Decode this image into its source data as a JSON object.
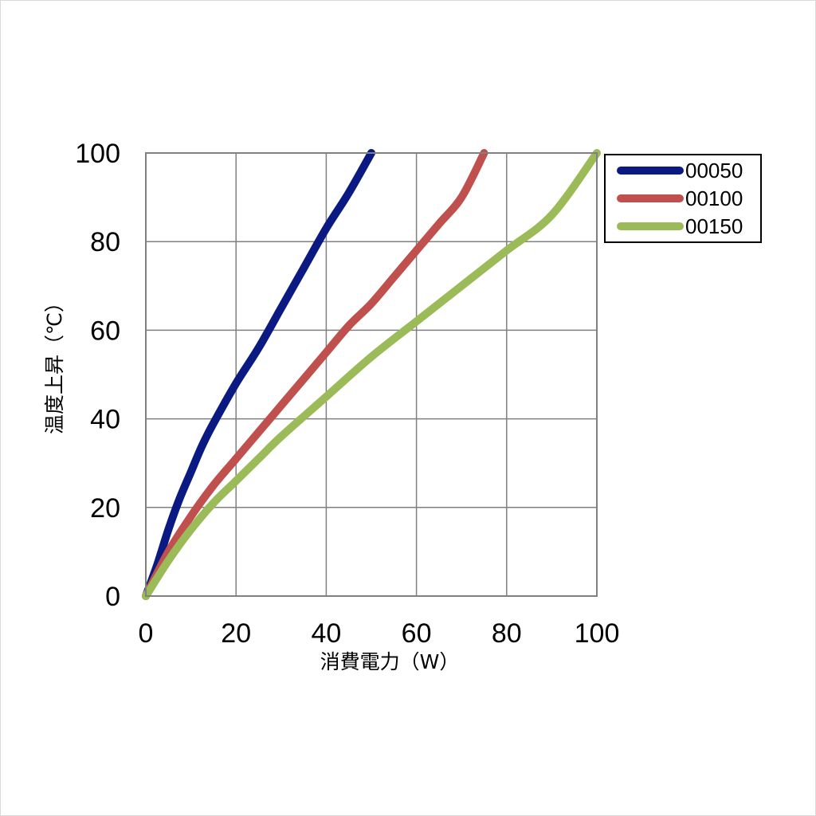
{
  "chart_data": {
    "type": "line",
    "xlabel": "消費電力（W）",
    "ylabel": "温度上昇（℃）",
    "xlim": [
      0,
      100
    ],
    "ylim": [
      0,
      100
    ],
    "x_ticks": [
      "0",
      "20",
      "40",
      "60",
      "80",
      "100"
    ],
    "y_ticks": [
      "0",
      "20",
      "40",
      "60",
      "80",
      "100"
    ],
    "grid": true,
    "legend_position": "right-top",
    "series": [
      {
        "name": "00050",
        "color": "#0b1a82",
        "points": [
          [
            0,
            0
          ],
          [
            2.5,
            7
          ],
          [
            5,
            15
          ],
          [
            7.5,
            22
          ],
          [
            10,
            28
          ],
          [
            12.5,
            34
          ],
          [
            15,
            39
          ],
          [
            20,
            48
          ],
          [
            25,
            56
          ],
          [
            30,
            65
          ],
          [
            35,
            74
          ],
          [
            40,
            83
          ],
          [
            45,
            91
          ],
          [
            50,
            100
          ]
        ]
      },
      {
        "name": "00100",
        "color": "#c0504d",
        "points": [
          [
            0,
            0
          ],
          [
            5,
            10
          ],
          [
            10,
            18
          ],
          [
            15,
            25
          ],
          [
            20,
            31
          ],
          [
            25,
            37
          ],
          [
            30,
            43
          ],
          [
            35,
            49
          ],
          [
            40,
            55
          ],
          [
            45,
            61
          ],
          [
            50,
            66
          ],
          [
            55,
            72
          ],
          [
            60,
            78
          ],
          [
            65,
            84
          ],
          [
            70,
            90
          ],
          [
            75,
            100
          ]
        ]
      },
      {
        "name": "00150",
        "color": "#9bbb59",
        "points": [
          [
            0,
            0
          ],
          [
            5,
            8
          ],
          [
            10,
            15
          ],
          [
            15,
            21
          ],
          [
            20,
            26
          ],
          [
            25,
            31
          ],
          [
            30,
            36
          ],
          [
            40,
            45
          ],
          [
            50,
            54
          ],
          [
            60,
            62
          ],
          [
            70,
            70
          ],
          [
            80,
            78
          ],
          [
            90,
            86
          ],
          [
            100,
            100
          ]
        ]
      }
    ]
  }
}
